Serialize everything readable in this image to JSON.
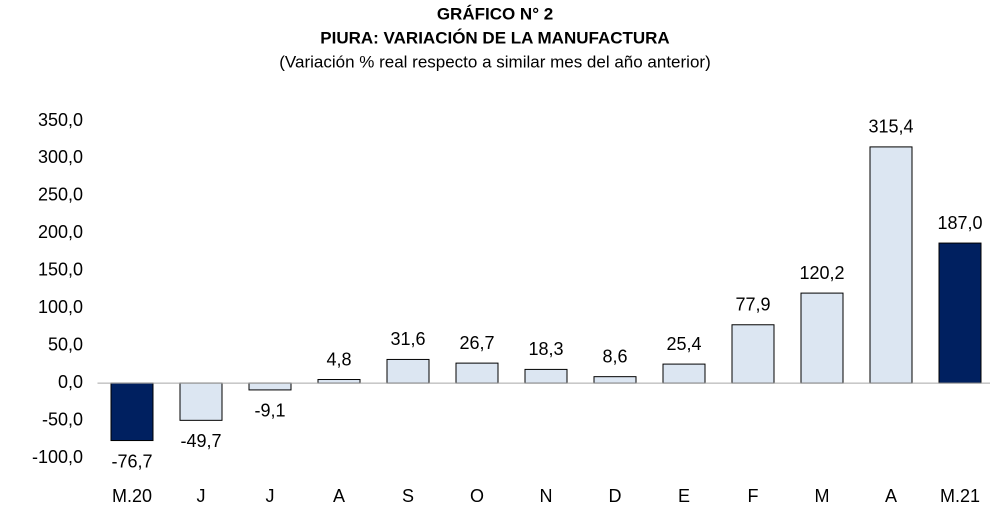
{
  "chart_data": {
    "type": "bar",
    "title": "GRÁFICO N° 2",
    "subtitle": "PIURA: VARIACIÓN DE LA MANUFACTURA",
    "note": "(Variación % real respecto a similar mes del año anterior)",
    "categories": [
      "M.20",
      "J",
      "J",
      "A",
      "S",
      "O",
      "N",
      "D",
      "E",
      "F",
      "M",
      "A",
      "M.21"
    ],
    "values": [
      -76.7,
      -49.7,
      -9.1,
      4.8,
      31.6,
      26.7,
      18.3,
      8.6,
      25.4,
      77.9,
      120.2,
      315.4,
      187.0
    ],
    "value_labels": [
      "-76,7",
      "-49,7",
      "-9,1",
      "4,8",
      "31,6",
      "26,7",
      "18,3",
      "8,6",
      "25,4",
      "77,9",
      "120,2",
      "315,4",
      "187,0"
    ],
    "colors": [
      "#002060",
      "#dce6f2",
      "#dce6f2",
      "#dce6f2",
      "#dce6f2",
      "#dce6f2",
      "#dce6f2",
      "#dce6f2",
      "#dce6f2",
      "#dce6f2",
      "#dce6f2",
      "#dce6f2",
      "#002060"
    ],
    "ylim": [
      -100,
      350
    ],
    "yticks": [
      {
        "value": 350,
        "label": "350,0"
      },
      {
        "value": 300,
        "label": "300,0"
      },
      {
        "value": 250,
        "label": "250,0"
      },
      {
        "value": 200,
        "label": "200,0"
      },
      {
        "value": 150,
        "label": "150,0"
      },
      {
        "value": 100,
        "label": "100,0"
      },
      {
        "value": 50,
        "label": "50,0"
      },
      {
        "value": 0,
        "label": "0,0"
      },
      {
        "value": -50,
        "label": "-50,0"
      },
      {
        "value": -100,
        "label": "-100,0"
      }
    ],
    "grid": false
  }
}
